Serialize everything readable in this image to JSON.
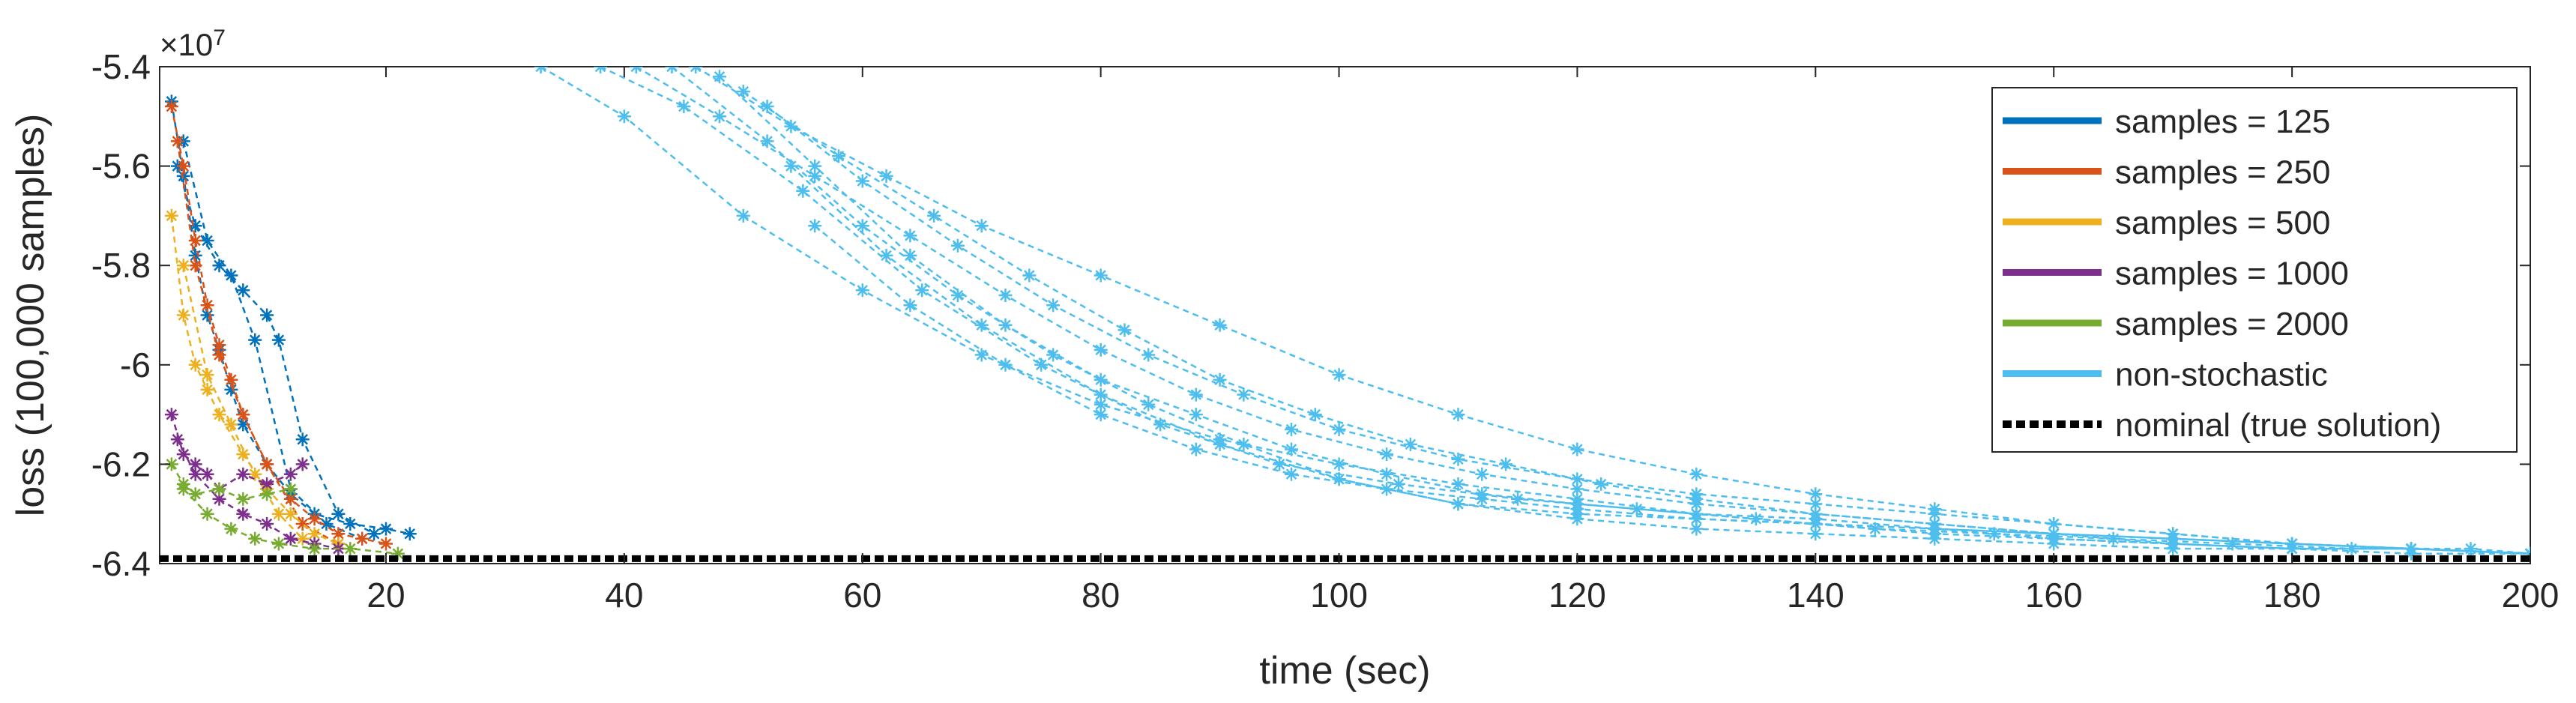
{
  "chart_data": {
    "type": "line",
    "title": "",
    "xlabel": "time (sec)",
    "ylabel": "loss (100,000 samples)",
    "y_exponent_label": "×10",
    "y_exponent_power": "7",
    "xlim": [
      1,
      200
    ],
    "ylim": [
      -6.4,
      -5.4
    ],
    "x_tick_values": [
      20,
      40,
      60,
      80,
      100,
      120,
      140,
      160,
      180,
      200
    ],
    "x_tick_labels": [
      "20",
      "40",
      "60",
      "80",
      "100",
      "120",
      "140",
      "160",
      "180",
      "200"
    ],
    "y_tick_values": [
      -6.4,
      -6.2,
      -6.0,
      -5.8,
      -5.6,
      -5.4
    ],
    "y_tick_labels": [
      "-6.4",
      "-6.2",
      "-6",
      "-5.8",
      "-5.6",
      "-5.4"
    ],
    "y_scale_multiplier": 10000000,
    "grid": false,
    "legend_position": "top-right",
    "series": [
      {
        "name": "samples = 125",
        "color": "#0072BD",
        "runs": [
          {
            "x": [
              2,
              3,
              4,
              5,
              6,
              7,
              8,
              10,
              12,
              14,
              17,
              20,
              22
            ],
            "y": [
              -5.47,
              -5.62,
              -5.78,
              -5.9,
              -5.97,
              -6.05,
              -6.12,
              -6.2,
              -6.26,
              -6.3,
              -6.32,
              -6.33,
              -6.34
            ]
          },
          {
            "x": [
              2.5,
              4,
              6,
              8,
              10,
              11,
              13,
              16,
              19
            ],
            "y": [
              -5.6,
              -5.72,
              -5.8,
              -5.85,
              -5.9,
              -5.95,
              -6.15,
              -6.3,
              -6.34
            ]
          },
          {
            "x": [
              3,
              5,
              7,
              9,
              12,
              15,
              18
            ],
            "y": [
              -5.55,
              -5.75,
              -5.82,
              -5.95,
              -6.25,
              -6.32,
              -6.35
            ]
          }
        ]
      },
      {
        "name": "samples = 250",
        "color": "#D95319",
        "runs": [
          {
            "x": [
              2,
              3,
              4,
              5,
              6,
              7,
              8,
              10,
              12,
              14,
              16,
              18,
              20
            ],
            "y": [
              -5.48,
              -5.6,
              -5.75,
              -5.88,
              -5.96,
              -6.03,
              -6.1,
              -6.2,
              -6.27,
              -6.31,
              -6.34,
              -6.35,
              -6.36
            ]
          },
          {
            "x": [
              2.5,
              4,
              6,
              8,
              10,
              13,
              16
            ],
            "y": [
              -5.55,
              -5.8,
              -5.98,
              -6.1,
              -6.2,
              -6.32,
              -6.36
            ]
          }
        ]
      },
      {
        "name": "samples = 500",
        "color": "#EDB120",
        "runs": [
          {
            "x": [
              2,
              3,
              4,
              5,
              6,
              8,
              10,
              12,
              14,
              16
            ],
            "y": [
              -5.7,
              -5.9,
              -6.0,
              -6.05,
              -6.1,
              -6.18,
              -6.25,
              -6.3,
              -6.34,
              -6.36
            ]
          },
          {
            "x": [
              3,
              5,
              7,
              9,
              11,
              13
            ],
            "y": [
              -5.8,
              -6.02,
              -6.12,
              -6.22,
              -6.3,
              -6.35
            ]
          }
        ]
      },
      {
        "name": "samples = 1000",
        "color": "#7E2F8E",
        "runs": [
          {
            "x": [
              2,
              3,
              4,
              5,
              6,
              8,
              10,
              12,
              13
            ],
            "y": [
              -6.1,
              -6.18,
              -6.2,
              -6.22,
              -6.25,
              -6.22,
              -6.24,
              -6.22,
              -6.2
            ]
          },
          {
            "x": [
              2.5,
              4,
              6,
              8,
              10,
              12,
              14,
              16
            ],
            "y": [
              -6.15,
              -6.22,
              -6.27,
              -6.3,
              -6.32,
              -6.35,
              -6.36,
              -6.37
            ]
          }
        ]
      },
      {
        "name": "samples = 2000",
        "color": "#77AC30",
        "runs": [
          {
            "x": [
              2,
              3,
              4,
              6,
              8,
              10,
              12
            ],
            "y": [
              -6.2,
              -6.24,
              -6.26,
              -6.25,
              -6.27,
              -6.26,
              -6.25
            ]
          },
          {
            "x": [
              3,
              5,
              7,
              9,
              11,
              14,
              17,
              21
            ],
            "y": [
              -6.25,
              -6.3,
              -6.33,
              -6.35,
              -6.36,
              -6.37,
              -6.37,
              -6.38
            ]
          }
        ]
      },
      {
        "name": "non-stochastic",
        "color": "#4DBEEE",
        "runs": [
          {
            "x": [
              33,
              40,
              50,
              60,
              70,
              80,
              90,
              100,
              110,
              120,
              130,
              140,
              150,
              160,
              170,
              180,
              190,
              200
            ],
            "y": [
              -5.4,
              -5.5,
              -5.7,
              -5.85,
              -5.98,
              -6.08,
              -6.15,
              -6.2,
              -6.24,
              -6.27,
              -6.3,
              -6.32,
              -6.34,
              -6.35,
              -6.36,
              -6.37,
              -6.37,
              -6.38
            ]
          },
          {
            "x": [
              38,
              45,
              55,
              65,
              75,
              85,
              95,
              105,
              115,
              125,
              135,
              145,
              155,
              165,
              175,
              185,
              195,
              200
            ],
            "y": [
              -5.4,
              -5.48,
              -5.65,
              -5.85,
              -6.0,
              -6.12,
              -6.2,
              -6.24,
              -6.27,
              -6.29,
              -6.31,
              -6.33,
              -6.34,
              -6.35,
              -6.36,
              -6.37,
              -6.37,
              -6.38
            ]
          },
          {
            "x": [
              41,
              48,
              56,
              64,
              72,
              80,
              88,
              96,
              104,
              112,
              120,
              130,
              140,
              150,
              160,
              170,
              180,
              190,
              200
            ],
            "y": [
              -5.4,
              -5.5,
              -5.62,
              -5.74,
              -5.86,
              -5.97,
              -6.06,
              -6.13,
              -6.18,
              -6.22,
              -6.25,
              -6.28,
              -6.3,
              -6.32,
              -6.34,
              -6.35,
              -6.36,
              -6.37,
              -6.38
            ]
          },
          {
            "x": [
              44,
              52,
              60,
              68,
              76,
              84,
              92,
              100,
              110,
              120,
              130,
              140,
              150,
              160,
              170,
              180,
              190,
              200
            ],
            "y": [
              -5.4,
              -5.55,
              -5.72,
              -5.86,
              -5.98,
              -6.08,
              -6.16,
              -6.23,
              -6.28,
              -6.3,
              -6.31,
              -6.32,
              -6.33,
              -6.35,
              -6.36,
              -6.37,
              -6.37,
              -6.38
            ]
          },
          {
            "x": [
              46,
              54,
              62,
              70,
              80,
              90,
              100,
              110,
              120,
              130,
              140,
              150,
              160,
              170,
              180,
              190,
              200
            ],
            "y": [
              -5.4,
              -5.52,
              -5.62,
              -5.72,
              -5.82,
              -5.92,
              -6.02,
              -6.1,
              -6.17,
              -6.22,
              -6.26,
              -6.29,
              -6.32,
              -6.34,
              -6.36,
              -6.37,
              -6.38
            ]
          },
          {
            "x": [
              48,
              56,
              64,
              72,
              80,
              88,
              96,
              104,
              112,
              120,
              130,
              140,
              150,
              160,
              170,
              180,
              190,
              200
            ],
            "y": [
              -5.42,
              -5.6,
              -5.78,
              -5.92,
              -6.03,
              -6.1,
              -6.17,
              -6.22,
              -6.26,
              -6.28,
              -6.3,
              -6.31,
              -6.33,
              -6.34,
              -6.36,
              -6.37,
              -6.37,
              -6.38
            ]
          },
          {
            "x": [
              50,
              58,
              66,
              74,
              82,
              90,
              98,
              106,
              114,
              122,
              130,
              140,
              150,
              160,
              170,
              180,
              190,
              200
            ],
            "y": [
              -5.45,
              -5.58,
              -5.7,
              -5.82,
              -5.93,
              -6.03,
              -6.1,
              -6.16,
              -6.2,
              -6.24,
              -6.27,
              -6.3,
              -6.32,
              -6.34,
              -6.35,
              -6.36,
              -6.37,
              -6.38
            ]
          },
          {
            "x": [
              52,
              60,
              68,
              76,
              84,
              92,
              100,
              110,
              120,
              130,
              140,
              150,
              160,
              170,
              180,
              190,
              200
            ],
            "y": [
              -5.48,
              -5.63,
              -5.76,
              -5.88,
              -5.98,
              -6.06,
              -6.13,
              -6.19,
              -6.23,
              -6.26,
              -6.28,
              -6.3,
              -6.32,
              -6.34,
              -6.36,
              -6.37,
              -6.38
            ]
          },
          {
            "x": [
              54,
              62,
              70,
              80,
              90,
              100,
              110,
              120,
              130,
              140,
              150,
              160,
              170,
              180,
              190,
              200
            ],
            "y": [
              -5.6,
              -5.78,
              -5.92,
              -6.06,
              -6.16,
              -6.23,
              -6.28,
              -6.31,
              -6.33,
              -6.34,
              -6.35,
              -6.36,
              -6.37,
              -6.37,
              -6.38,
              -6.38
            ]
          },
          {
            "x": [
              56,
              64,
              72,
              80,
              88,
              96,
              104,
              112,
              120,
              130,
              140,
              150,
              160,
              170,
              180,
              190,
              200
            ],
            "y": [
              -5.72,
              -5.88,
              -6.0,
              -6.1,
              -6.17,
              -6.22,
              -6.25,
              -6.27,
              -6.29,
              -6.31,
              -6.32,
              -6.33,
              -6.34,
              -6.35,
              -6.36,
              -6.37,
              -6.38
            ]
          }
        ]
      },
      {
        "name": "nominal (true solution)",
        "color": "#000000",
        "dashed": true,
        "x": [
          1,
          200
        ],
        "y": [
          -6.39,
          -6.39
        ]
      }
    ]
  }
}
